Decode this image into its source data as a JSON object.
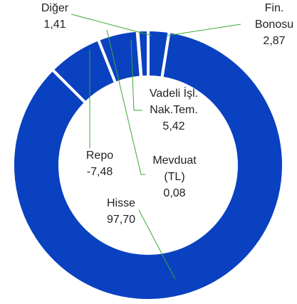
{
  "chart_data": {
    "type": "donut",
    "categories": [
      "Fin. Bonosu",
      "Hisse",
      "Repo",
      "Vadeli İşl. Nak.Tem.",
      "Mevduat (TL)",
      "Diğer"
    ],
    "values": [
      2.87,
      97.7,
      -7.48,
      5.42,
      0.08,
      1.41
    ],
    "value_labels": [
      "2,87",
      "97,70",
      "-7,48",
      "5,42",
      "0,08",
      "1,41"
    ],
    "color": "#0a41c0"
  }
}
